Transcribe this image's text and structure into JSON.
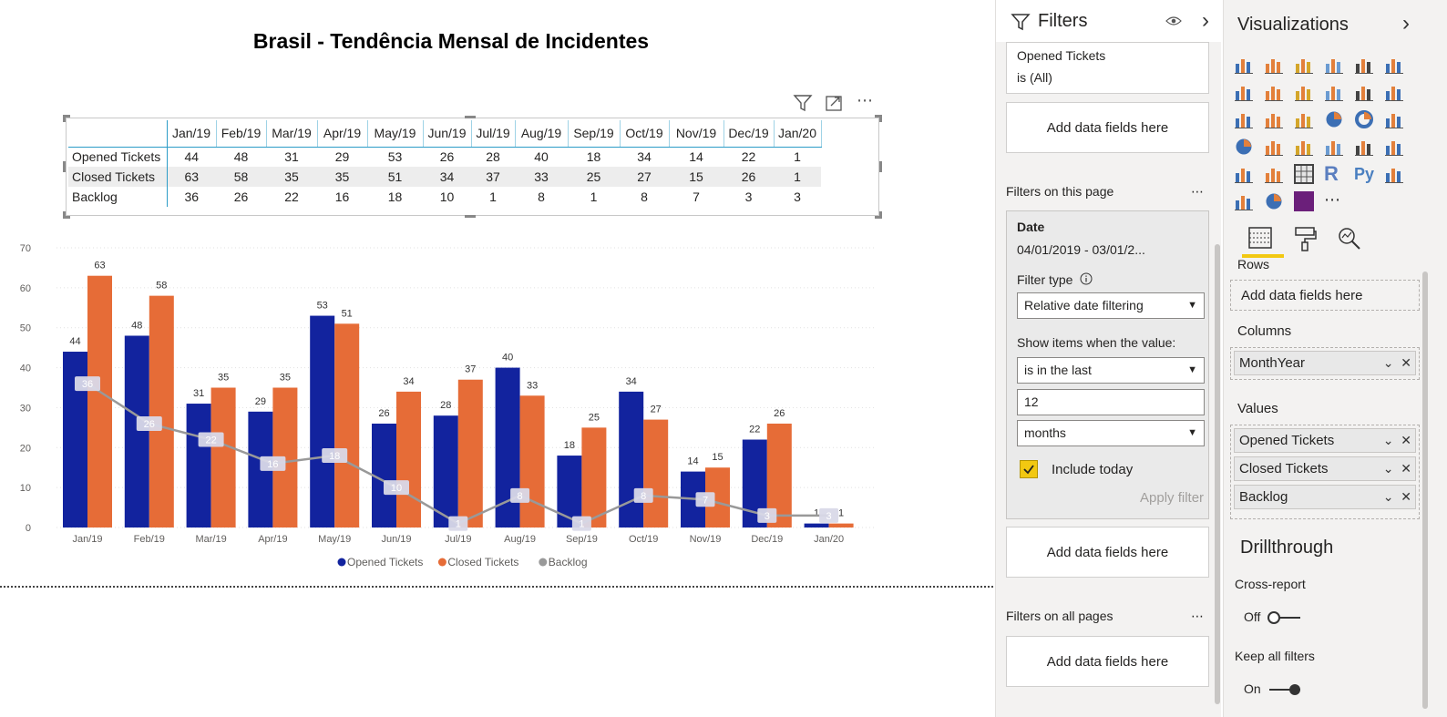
{
  "report": {
    "title": "Brasil - Tendência Mensal de Incidentes"
  },
  "table": {
    "columns": [
      "Jan/19",
      "Feb/19",
      "Mar/19",
      "Apr/19",
      "May/19",
      "Jun/19",
      "Jul/19",
      "Aug/19",
      "Sep/19",
      "Oct/19",
      "Nov/19",
      "Dec/19",
      "Jan/20"
    ],
    "rows": [
      {
        "label": "Opened Tickets",
        "values": [
          44,
          48,
          31,
          29,
          53,
          26,
          28,
          40,
          18,
          34,
          14,
          22,
          1
        ]
      },
      {
        "label": "Closed Tickets",
        "values": [
          63,
          58,
          35,
          35,
          51,
          34,
          37,
          33,
          25,
          27,
          15,
          26,
          1
        ]
      },
      {
        "label": "Backlog",
        "values": [
          36,
          26,
          22,
          16,
          18,
          10,
          1,
          8,
          1,
          8,
          7,
          3,
          3
        ]
      }
    ]
  },
  "visual_toolbar": {
    "filter_icon": "filter-icon",
    "focus_icon": "focus-mode-icon",
    "more": "⋯"
  },
  "chart_data": {
    "type": "bar",
    "categories": [
      "Jan/19",
      "Feb/19",
      "Mar/19",
      "Apr/19",
      "May/19",
      "Jun/19",
      "Jul/19",
      "Aug/19",
      "Sep/19",
      "Oct/19",
      "Nov/19",
      "Dec/19",
      "Jan/20"
    ],
    "series": [
      {
        "name": "Opened Tickets",
        "type": "bar",
        "color": "#12239e",
        "values": [
          44,
          48,
          31,
          29,
          53,
          26,
          28,
          40,
          18,
          34,
          14,
          22,
          1
        ]
      },
      {
        "name": "Closed Tickets",
        "type": "bar",
        "color": "#e66c37",
        "values": [
          63,
          58,
          35,
          35,
          51,
          34,
          37,
          33,
          25,
          27,
          15,
          26,
          1
        ]
      },
      {
        "name": "Backlog",
        "type": "line",
        "color": "#999999",
        "values": [
          36,
          26,
          22,
          16,
          18,
          10,
          1,
          8,
          1,
          8,
          7,
          3,
          3
        ]
      }
    ],
    "yticks": [
      0,
      10,
      20,
      30,
      40,
      50,
      60,
      70
    ],
    "ylim": [
      0,
      70
    ],
    "grid": true,
    "legend": "bottom-center"
  },
  "filters": {
    "title": "Filters",
    "eye_icon": "eye-icon",
    "chevron": "›",
    "card_opened": {
      "title": "Opened Tickets",
      "value": "is (All)"
    },
    "add_fields": "Add data fields here",
    "on_this_page": "Filters on this page",
    "on_all_pages": "Filters on all pages",
    "dots": "⋯",
    "date": {
      "title": "Date",
      "range": "04/01/2019 - 03/01/2...",
      "filter_type_label": "Filter type",
      "filter_type_value": "Relative date filtering",
      "show_items_label": "Show items when the value:",
      "condition": "is in the last",
      "amount": "12",
      "unit": "months",
      "include_today": "Include today",
      "apply": "Apply filter"
    }
  },
  "visualizations": {
    "title": "Visualizations",
    "chevron": "›",
    "more": "⋯",
    "rows_label": "Rows",
    "rows_placeholder": "Add data fields here",
    "columns_label": "Columns",
    "columns_fields": [
      "MonthYear"
    ],
    "values_label": "Values",
    "values_fields": [
      "Opened Tickets",
      "Closed Tickets",
      "Backlog"
    ],
    "drillthrough_label": "Drillthrough",
    "cross_report_label": "Cross-report",
    "cross_report_state": "Off",
    "keep_filters_label": "Keep all filters",
    "keep_filters_state": "On",
    "r_label": "R",
    "py_label": "Py"
  }
}
